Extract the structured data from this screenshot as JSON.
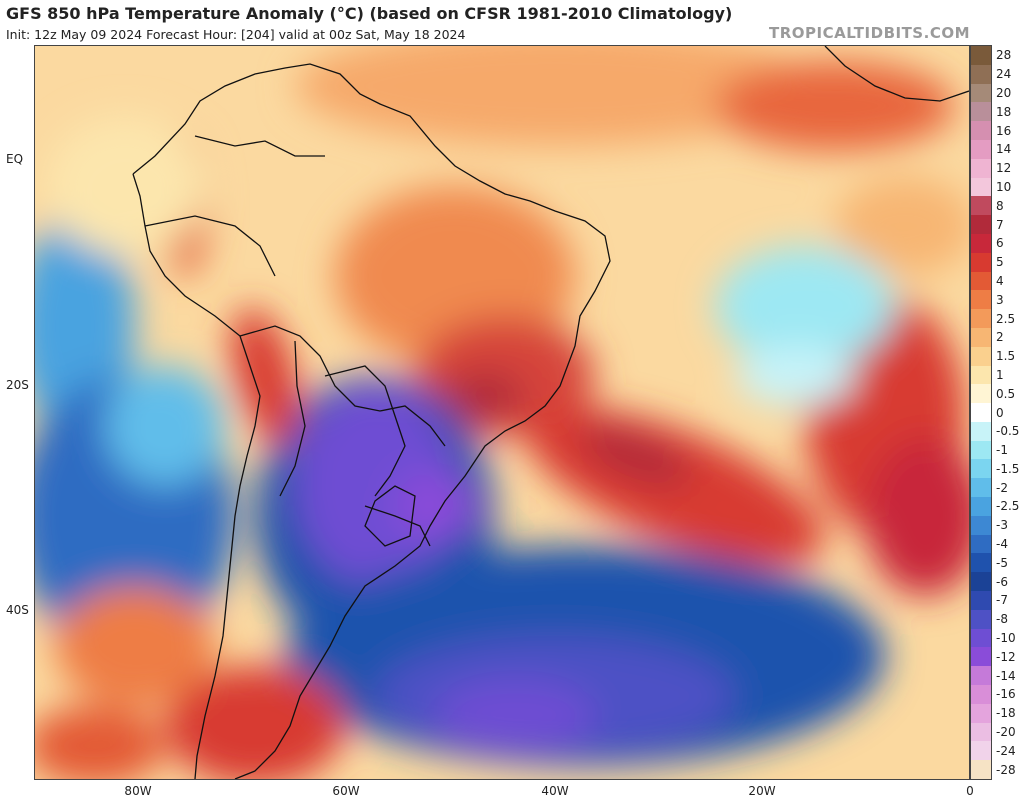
{
  "header": {
    "title": "GFS 850 hPa Temperature Anomaly (°C) (based on CFSR 1981-2010 Climatology)",
    "subtitle": "Init: 12z May 09 2024   Forecast Hour: [204]   valid at 00z Sat, May 18 2024",
    "brand": "TROPICALTIDBITS.COM"
  },
  "map": {
    "lat_labels": [
      "EQ",
      "20S",
      "40S"
    ],
    "lon_labels": [
      "80W",
      "60W",
      "40W",
      "20W",
      "0"
    ],
    "regions": [
      {
        "name": "South America",
        "anomaly_pattern": "warm north and east, strong cold core over Paraguay, northern Argentina and southern Brazil"
      },
      {
        "name": "South Atlantic",
        "anomaly_pattern": "warm band from southeast Brazil toward the southeast; cold belt across the far south"
      },
      {
        "name": "Patagonia",
        "anomaly_pattern": "warm anomaly over southern Argentina and Chile"
      }
    ]
  },
  "colorbar": {
    "levels": [
      "28",
      "24",
      "20",
      "18",
      "16",
      "14",
      "12",
      "10",
      "8",
      "7",
      "6",
      "5",
      "4",
      "3",
      "2.5",
      "2",
      "1.5",
      "1",
      "0.5",
      "0",
      "-0.5",
      "-1",
      "-1.5",
      "-2",
      "-2.5",
      "-3",
      "-4",
      "-5",
      "-6",
      "-7",
      "-8",
      "-10",
      "-12",
      "-14",
      "-16",
      "-18",
      "-20",
      "-24",
      "-28"
    ],
    "colors": [
      "#7a5a3a",
      "#8f6f55",
      "#a58a78",
      "#b98f9a",
      "#d58fb0",
      "#e49cc2",
      "#efb4d2",
      "#f3c7dc",
      "#c04a5e",
      "#b12a3a",
      "#c8283a",
      "#d83a30",
      "#e35a35",
      "#ee7d45",
      "#f39a5a",
      "#f7b673",
      "#fad08e",
      "#fce6ad",
      "#fff5d4",
      "#ffffff",
      "#c8f3f8",
      "#9de8f3",
      "#7bd5f0",
      "#60bdea",
      "#4aa3e0",
      "#3d88d3",
      "#2f6cc2",
      "#1f52ad",
      "#1b4296",
      "#2f4ab0",
      "#4e51c5",
      "#6e4ed3",
      "#8a4cd9",
      "#c57ad9",
      "#d98ed8",
      "#e4a4dd",
      "#ebbee3",
      "#f1d3ea",
      "#f6e3c5"
    ]
  }
}
